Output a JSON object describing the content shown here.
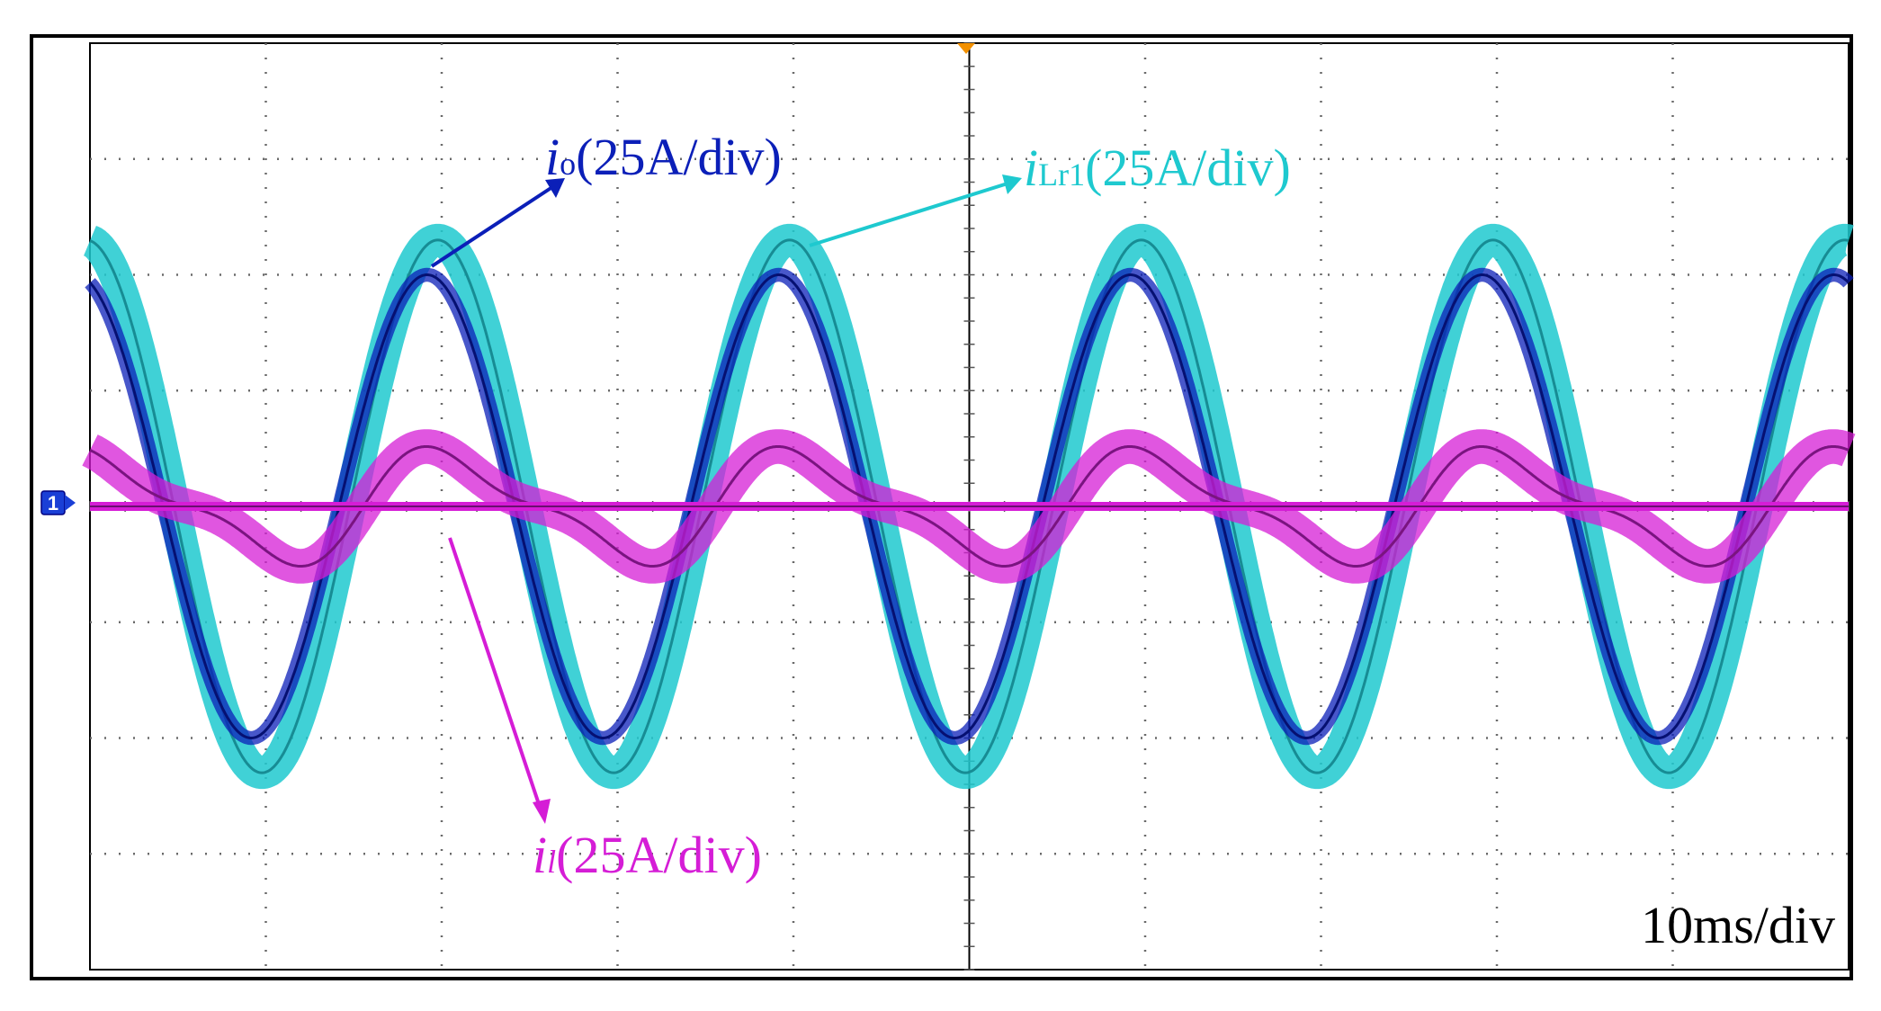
{
  "chart_data": {
    "type": "line",
    "title": "",
    "xlabel": "",
    "ylabel": "",
    "time_scale_label": "10ms/div",
    "channel_marker": "1",
    "x_divisions": 10,
    "y_divisions": 8,
    "xlim_div": [
      0,
      10
    ],
    "ylim_div": [
      -4,
      4
    ],
    "grid": true,
    "series": [
      {
        "name_italic": "i",
        "name_sub": "o",
        "name_unit": "(25A/div)",
        "color": "#0b1fb8",
        "period_div": 2.0,
        "amplitude_div": 2.0,
        "offset_div": 0.0,
        "phase_deg": 15,
        "band_div": 0.12
      },
      {
        "name_italic": "i",
        "name_sub": "Lr1",
        "name_unit": "(25A/div)",
        "color": "#1ec9cf",
        "period_div": 2.0,
        "amplitude_div": 2.3,
        "offset_div": 0.0,
        "phase_deg": 4,
        "band_div": 0.28
      },
      {
        "name_italic": "i",
        "name_sub": "l",
        "name_unit": "(25A/div)",
        "color": "#d51dd6",
        "period_div": 2.0,
        "amplitude_div": 0.55,
        "offset_div": 0.0,
        "phase_deg": 80,
        "band_div": 0.3
      }
    ]
  }
}
